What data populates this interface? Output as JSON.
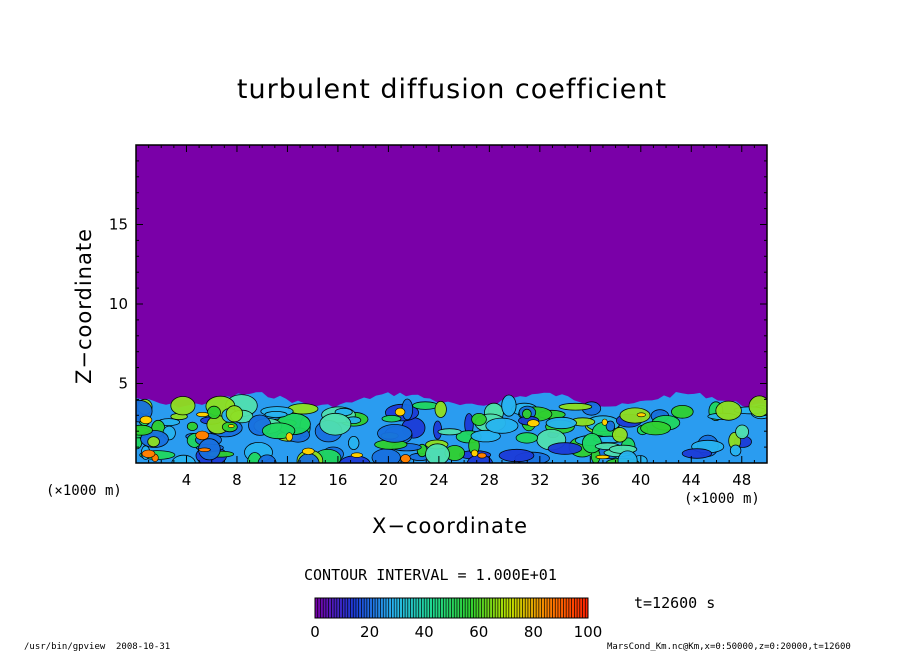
{
  "chart_data": {
    "type": "heatmap",
    "title": "turbulent diffusion coefficient",
    "xlabel": "X−coordinate",
    "ylabel": "Z−coordinate",
    "x_unit": "(×1000 m)",
    "xlim": [
      0,
      50
    ],
    "ylim": [
      0,
      20
    ],
    "x_ticks": [
      4,
      8,
      12,
      16,
      20,
      24,
      28,
      32,
      36,
      40,
      44,
      48
    ],
    "y_ticks": [
      5,
      10,
      15
    ],
    "background_color": "#7a00a8",
    "turbulent_layer_top_approx_km": 4,
    "contour_interval": "CONTOUR INTERVAL = 1.000E+01",
    "colorbar": {
      "range": [
        0,
        100
      ],
      "ticks": [
        "0",
        "20",
        "40",
        "60",
        "80",
        "100"
      ],
      "colors": [
        "#7a00a8",
        "#1c3cd8",
        "#28b4f0",
        "#20d890",
        "#30d030",
        "#c0e000",
        "#ff8000",
        "#ff2000"
      ]
    },
    "time_label": "t=12600 s"
  },
  "footer": {
    "program": "/usr/bin/gpview",
    "date": "2008-10-31",
    "file_info": "MarsCond_Km.nc@Km,x=0:50000,z=0:20000,t=12600"
  }
}
